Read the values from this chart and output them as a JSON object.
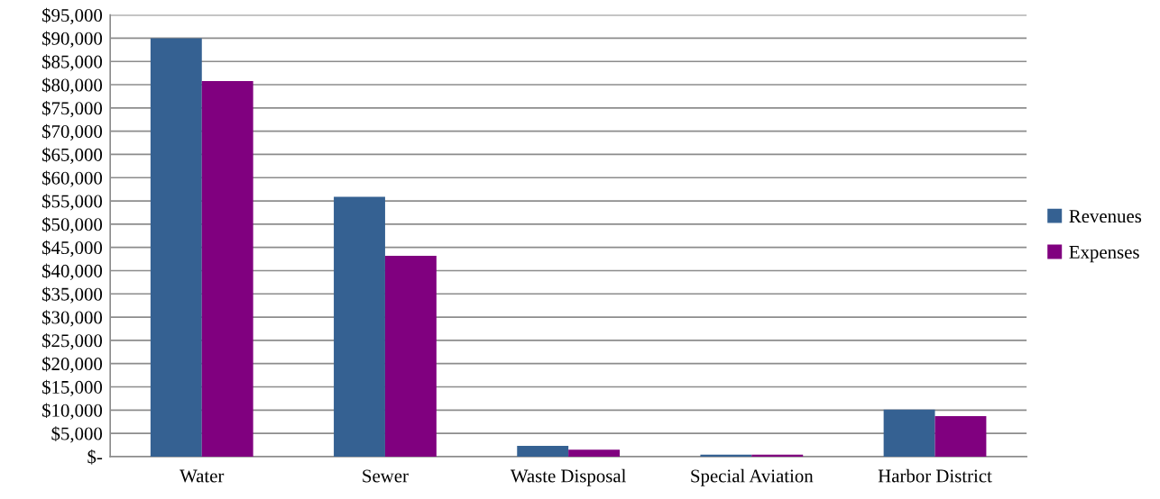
{
  "chart_data": {
    "type": "bar",
    "categories": [
      "Water",
      "Sewer",
      "Waste Disposal",
      "Special Aviation",
      "Harbor District"
    ],
    "series": [
      {
        "name": "Revenues",
        "color": "#356192",
        "values": [
          90000,
          55900,
          2300,
          400,
          10100
        ]
      },
      {
        "name": "Expenses",
        "color": "#80007f",
        "values": [
          80800,
          43200,
          1500,
          400,
          8700
        ]
      }
    ],
    "ylim": [
      0,
      95000
    ],
    "yticks": [
      {
        "value": 0,
        "label": "$-"
      },
      {
        "value": 5000,
        "label": "$5,000"
      },
      {
        "value": 10000,
        "label": "$10,000"
      },
      {
        "value": 15000,
        "label": "$15,000"
      },
      {
        "value": 20000,
        "label": "$20,000"
      },
      {
        "value": 25000,
        "label": "$25,000"
      },
      {
        "value": 30000,
        "label": "$30,000"
      },
      {
        "value": 35000,
        "label": "$35,000"
      },
      {
        "value": 40000,
        "label": "$40,000"
      },
      {
        "value": 45000,
        "label": "$45,000"
      },
      {
        "value": 50000,
        "label": "$50,000"
      },
      {
        "value": 55000,
        "label": "$55,000"
      },
      {
        "value": 60000,
        "label": "$60,000"
      },
      {
        "value": 65000,
        "label": "$65,000"
      },
      {
        "value": 70000,
        "label": "$70,000"
      },
      {
        "value": 75000,
        "label": "$75,000"
      },
      {
        "value": 80000,
        "label": "$80,000"
      },
      {
        "value": 85000,
        "label": "$85,000"
      },
      {
        "value": 90000,
        "label": "$90,000"
      },
      {
        "value": 95000,
        "label": "$95,000"
      }
    ],
    "grid": "y",
    "legend": "right"
  }
}
